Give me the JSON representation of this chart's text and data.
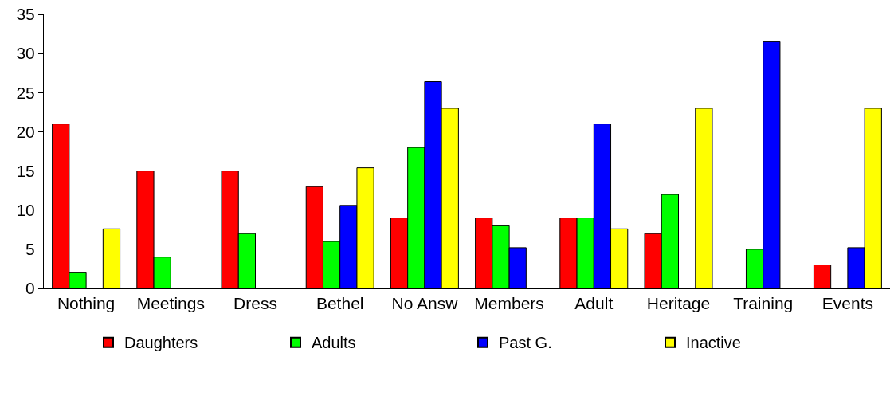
{
  "chart_data": {
    "type": "bar",
    "categories": [
      "Nothing",
      "Meetings",
      "Dress",
      "Bethel",
      "No Answ",
      "Members",
      "Adult",
      "Heritage",
      "Training",
      "Events"
    ],
    "series": [
      {
        "name": "Daughters",
        "color": "#ff0000",
        "values": [
          21,
          15,
          15,
          13,
          9,
          9,
          9,
          7,
          null,
          3
        ]
      },
      {
        "name": "Adults",
        "color": "#00ff00",
        "values": [
          2,
          4,
          7,
          6,
          18,
          8,
          9,
          12,
          5,
          null
        ]
      },
      {
        "name": "Past G.",
        "color": "#0000ff",
        "values": [
          null,
          null,
          null,
          10.6,
          26.4,
          5.2,
          21,
          null,
          31.5,
          5.2
        ]
      },
      {
        "name": "Inactive",
        "color": "#ffff00",
        "values": [
          7.6,
          null,
          null,
          15.4,
          23,
          null,
          7.6,
          23,
          null,
          23
        ]
      }
    ],
    "ylim": [
      0,
      35
    ],
    "yticks": [
      0,
      5,
      10,
      15,
      20,
      25,
      30,
      35
    ],
    "grid": false,
    "legend": "bottom"
  }
}
